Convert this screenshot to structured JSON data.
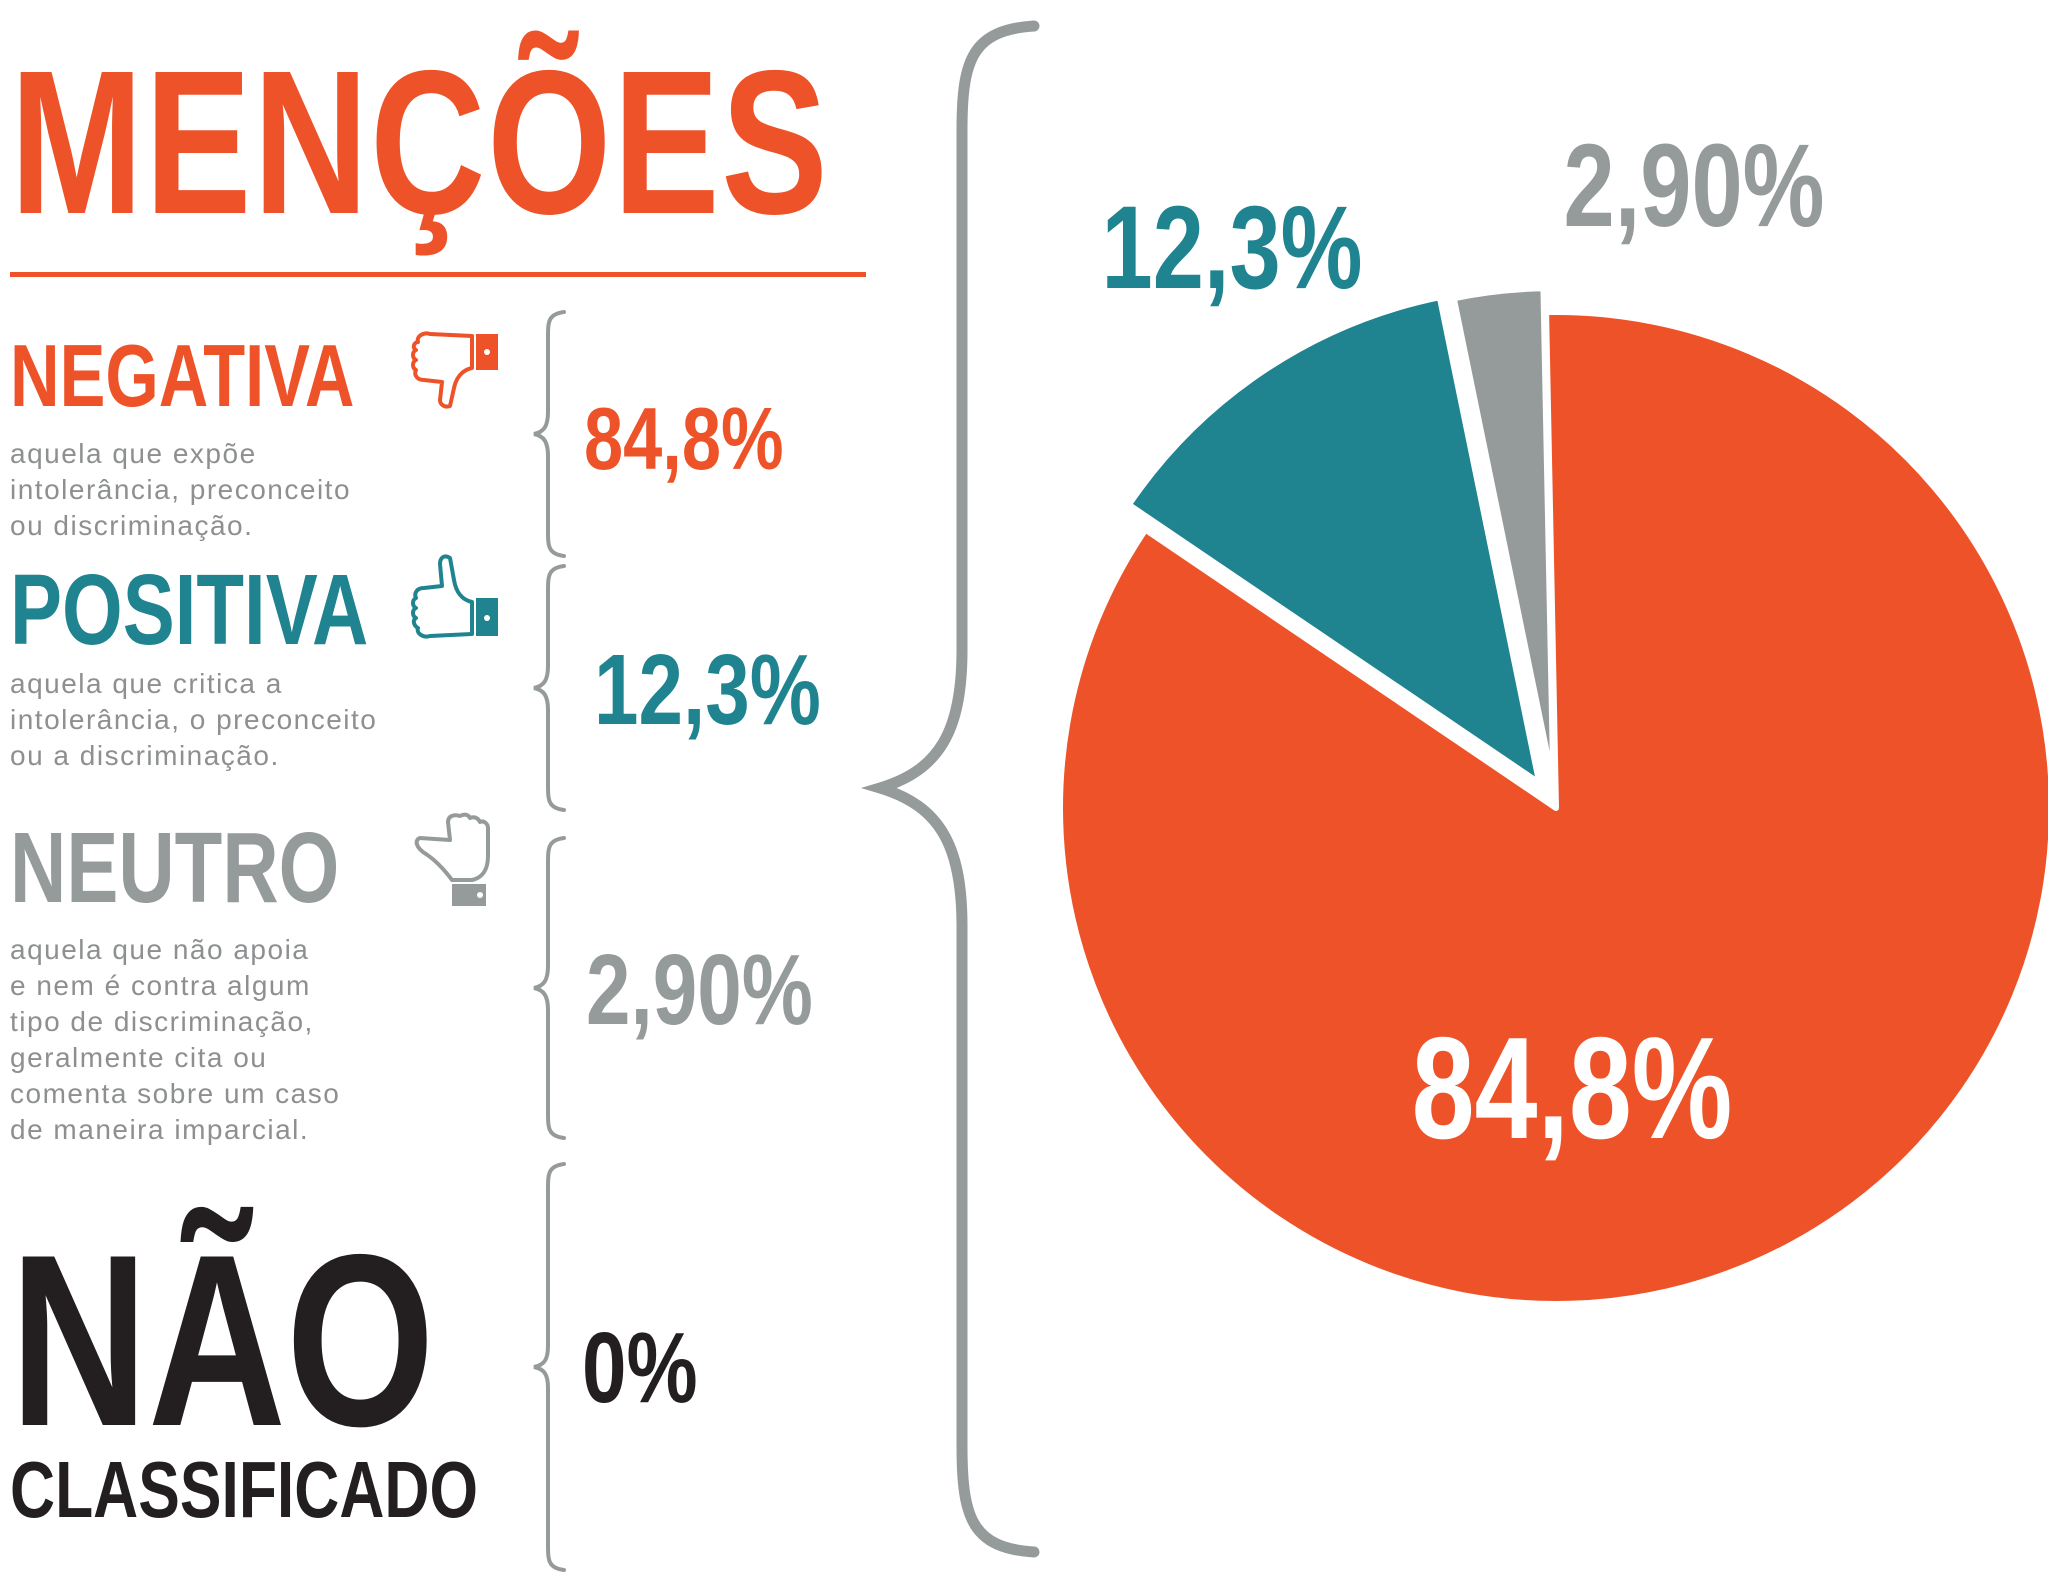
{
  "title": "MENÇÕES",
  "categories": [
    {
      "id": "negativa",
      "label": "NEGATIVA",
      "description": [
        "aquela que expõe",
        "intolerância, preconceito",
        "ou discriminação."
      ],
      "value_label": "84,8%",
      "color": "#ee5228",
      "icon": "thumbs-down-icon"
    },
    {
      "id": "positiva",
      "label": "POSITIVA",
      "description": [
        "aquela que critica a",
        "intolerância, o preconceito",
        "ou a discriminação."
      ],
      "value_label": "12,3%",
      "color": "#1f8390",
      "icon": "thumbs-up-icon"
    },
    {
      "id": "neutro",
      "label": "NEUTRO",
      "description": [
        "aquela que não apoia",
        "e nem é contra algum",
        "tipo de discriminação,",
        "geralmente cita ou",
        "comenta sobre um caso",
        "de maneira imparcial."
      ],
      "value_label": "2,90%",
      "color": "#959a9b",
      "icon": "thumbs-sideways-icon"
    },
    {
      "id": "nao_classificado",
      "label_line1": "NÃO",
      "label_line2": "CLASSIFICADO",
      "value_label": "0%",
      "color": "#231f20"
    }
  ],
  "chart_data": {
    "type": "pie",
    "title": "",
    "slices": [
      {
        "label": "Negativa",
        "value": 84.8,
        "value_label": "84,8%",
        "color": "#ee5228",
        "exploded": false
      },
      {
        "label": "Positiva",
        "value": 12.3,
        "value_label": "12,3%",
        "color": "#1f8390",
        "exploded": true
      },
      {
        "label": "Neutro",
        "value": 2.9,
        "value_label": "2,90%",
        "color": "#959a9b",
        "exploded": true
      }
    ],
    "start": "top (12 o'clock), clockwise",
    "legend": "none",
    "brace_color": "#959a9b"
  }
}
